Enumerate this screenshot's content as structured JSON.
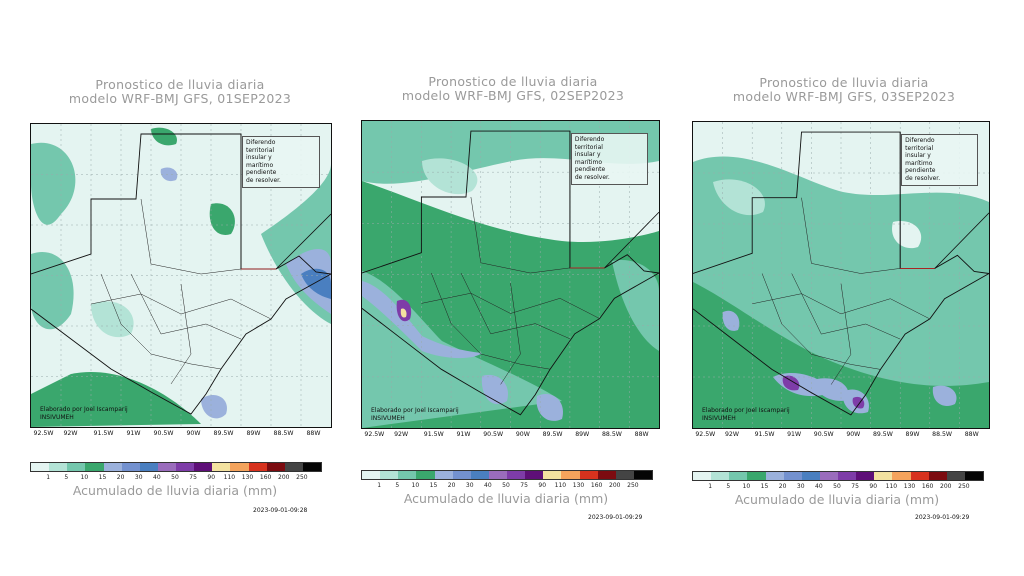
{
  "panels": [
    {
      "title_line1": "Pronostico de lluvia diaria",
      "title_line2": "modelo WRF-BMJ GFS,  01SEP2023",
      "note": [
        "Diferendo",
        "territorial",
        "insular y",
        "marítimo",
        "pendiente",
        "de resolver."
      ],
      "credit_line1": "Elaborado  por Joel Iscamparij",
      "credit_line2": "INSIVUMEH",
      "timestamp": "2023-09-01-09:28"
    },
    {
      "title_line1": "Pronostico de lluvia diaria",
      "title_line2": "modelo WRF-BMJ GFS,  02SEP2023",
      "note": [
        "Diferendo",
        "territorial",
        "insular y",
        "marítimo",
        "pendiente",
        "de resolver."
      ],
      "credit_line1": "Elaborado  por Joel Iscamparij",
      "credit_line2": "INSIVUMEH",
      "timestamp": "2023-09-01-09:29"
    },
    {
      "title_line1": "Pronostico de lluvia diaria",
      "title_line2": "modelo WRF-BMJ GFS,  03SEP2023",
      "note": [
        "Diferendo",
        "territorial",
        "insular y",
        "marítimo",
        "pendiente",
        "de resolver."
      ],
      "credit_line1": "Elaborado  por Joel Iscamparij",
      "credit_line2": "INSIVUMEH",
      "timestamp": "2023-09-01-09:29"
    }
  ],
  "lon_labels": [
    "92.5W",
    "92W",
    "91.5W",
    "91W",
    "90.5W",
    "90W",
    "89.5W",
    "89W",
    "88.5W",
    "88W"
  ],
  "colorbar": {
    "label": "Acumulado de lluvia diaria (mm)",
    "ticks": [
      "1",
      "5",
      "10",
      "15",
      "20",
      "30",
      "40",
      "50",
      "75",
      "90",
      "110",
      "130",
      "160",
      "200",
      "250"
    ],
    "colors": [
      "#e4f4f1",
      "#b3e3d6",
      "#74c7ad",
      "#3aa76d",
      "#9bb1dc",
      "#7391cf",
      "#4a7fc0",
      "#9a6cbc",
      "#7e3ca8",
      "#5e0f78",
      "#f3e2a0",
      "#f4a35c",
      "#d7321e",
      "#7c0b10",
      "#444444",
      "#050505"
    ]
  }
}
